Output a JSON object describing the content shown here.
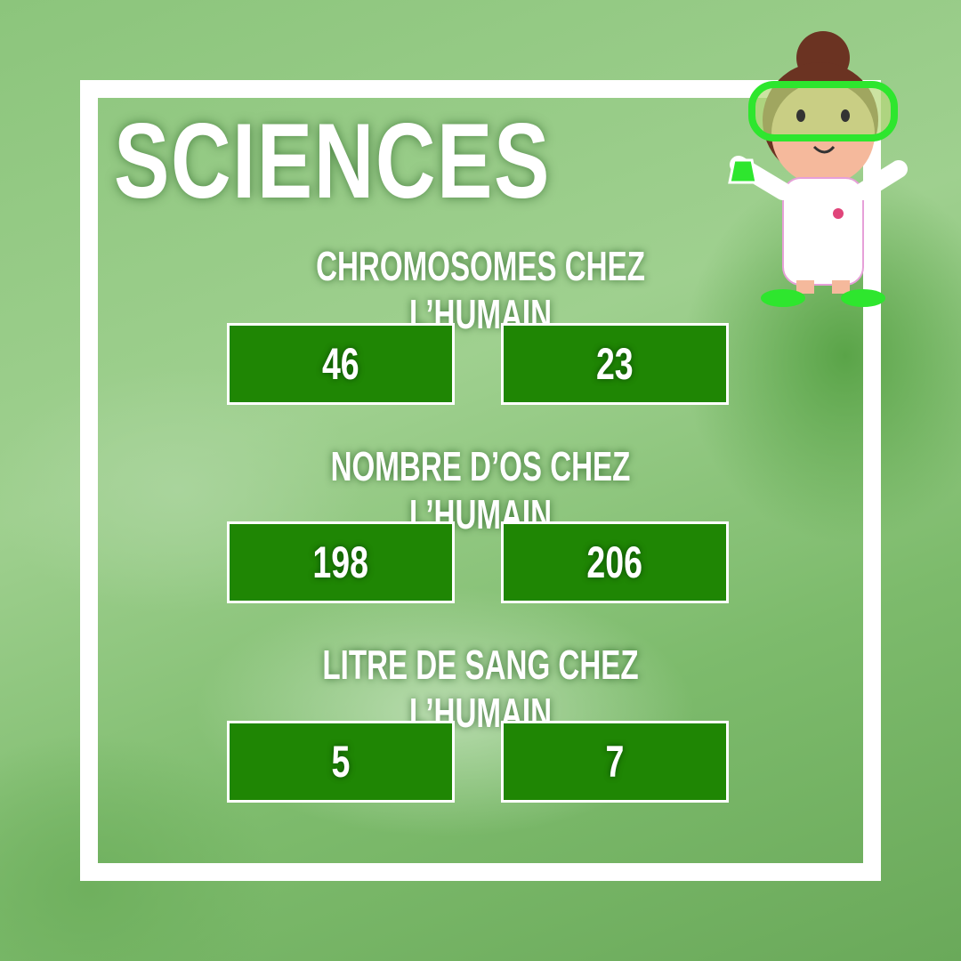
{
  "title": "SCIENCES",
  "questions": [
    {
      "label": "CHROMOSOMES CHEZ L’HUMAIN",
      "options": [
        "46",
        "23"
      ]
    },
    {
      "label": "NOMBRE D’OS CHEZ L’HUMAIN",
      "options": [
        "198",
        "206"
      ]
    },
    {
      "label": "LITRE DE SANG CHEZ L’HUMAIN",
      "options": [
        "5",
        "7"
      ]
    }
  ],
  "colors": {
    "button": "#1f8604",
    "frame": "#ffffff",
    "background_tint": "#8cc57c"
  },
  "icons": {
    "mascot": "scientist-girl-illustration"
  }
}
